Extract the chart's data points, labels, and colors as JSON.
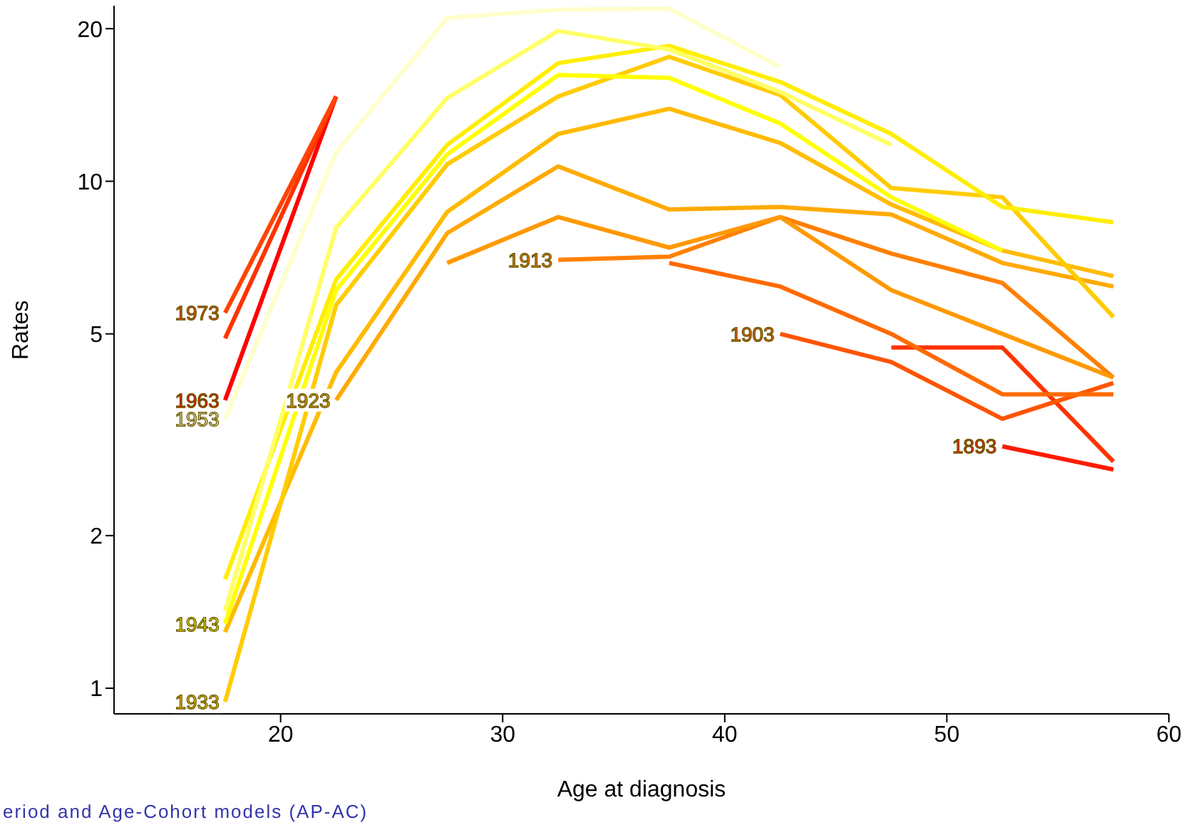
{
  "chart_data": {
    "type": "line",
    "xlabel": "Age at diagnosis",
    "ylabel": "Rates",
    "log": "y",
    "grid": false,
    "marker": "none",
    "line_style": "solid",
    "xlim": [
      12.5,
      60
    ],
    "xticks": [
      20,
      30,
      40,
      50,
      60
    ],
    "ylim": [
      0.89,
      22.2
    ],
    "yticks": [
      1,
      2,
      5,
      10,
      20
    ],
    "annotations": [
      "eriod and Age-Cohort models (AP-AC)"
    ],
    "series": [
      {
        "name": "1893",
        "color": "#ff1a00",
        "x": [
          52.5,
          57.5
        ],
        "values": [
          3.0,
          2.7
        ]
      },
      {
        "color": "#ff3300",
        "x": [
          47.5,
          52.5,
          57.5
        ],
        "values": [
          4.7,
          4.7,
          2.8
        ]
      },
      {
        "name": "1903",
        "color": "#ff5500",
        "x": [
          42.5,
          47.5,
          52.5,
          57.5
        ],
        "values": [
          5.0,
          4.4,
          3.4,
          4.0
        ]
      },
      {
        "color": "#ff6a00",
        "x": [
          37.5,
          42.5,
          47.5,
          52.5,
          57.5
        ],
        "values": [
          6.9,
          6.2,
          5.0,
          3.8,
          3.8
        ]
      },
      {
        "name": "1913",
        "color": "#ff8000",
        "x": [
          32.5,
          37.5,
          42.5,
          47.5,
          52.5,
          57.5
        ],
        "values": [
          7.0,
          7.1,
          8.5,
          7.2,
          6.3,
          4.1
        ]
      },
      {
        "color": "#ff9900",
        "x": [
          27.5,
          32.5,
          37.5,
          42.5,
          47.5,
          52.5,
          57.5
        ],
        "values": [
          6.9,
          8.5,
          7.4,
          8.5,
          6.1,
          5.0,
          4.1
        ]
      },
      {
        "name": "1923",
        "color": "#ffaa00",
        "x": [
          22.5,
          27.5,
          32.5,
          37.5,
          42.5,
          47.5,
          52.5,
          57.5
        ],
        "values": [
          3.7,
          7.9,
          10.7,
          8.8,
          8.9,
          8.6,
          6.9,
          6.2
        ]
      },
      {
        "color": "#ffbb00",
        "x": [
          17.5,
          22.5,
          27.5,
          32.5,
          37.5,
          42.5,
          47.5,
          52.5,
          57.5
        ],
        "values": [
          1.29,
          4.2,
          8.7,
          12.4,
          13.9,
          11.9,
          9.0,
          7.3,
          6.5
        ]
      },
      {
        "name": "1933",
        "color": "#ffcc00",
        "x": [
          17.5,
          22.5,
          27.5,
          32.5,
          37.5,
          42.5,
          47.5,
          52.5,
          57.5
        ],
        "values": [
          0.94,
          5.7,
          10.8,
          14.7,
          17.6,
          14.8,
          9.7,
          9.3,
          5.4
        ]
      },
      {
        "color": "#ffee00",
        "x": [
          17.5,
          22.5,
          27.5,
          32.5,
          37.5,
          42.5,
          47.5,
          52.5,
          57.5
        ],
        "values": [
          1.64,
          6.4,
          11.8,
          17.1,
          18.5,
          15.7,
          12.4,
          8.9,
          8.3
        ]
      },
      {
        "name": "1943",
        "color": "#ffff00",
        "x": [
          17.5,
          22.5,
          27.5,
          32.5,
          37.5,
          42.5,
          47.5,
          52.5
        ],
        "values": [
          1.34,
          6.1,
          11.3,
          16.2,
          16.0,
          13.0,
          9.3,
          7.3
        ]
      },
      {
        "color": "#ffff66",
        "x": [
          17.5,
          22.5,
          27.5,
          32.5,
          37.5,
          42.5,
          47.5
        ],
        "values": [
          1.42,
          8.1,
          14.6,
          19.8,
          18.2,
          15.0,
          11.8
        ]
      },
      {
        "name": "1953",
        "color": "#ffffcc",
        "x": [
          17.5,
          22.5,
          27.5,
          32.5,
          37.5,
          42.5
        ],
        "values": [
          3.4,
          11.4,
          21.0,
          21.8,
          21.9,
          16.8
        ]
      },
      {
        "name": "1963",
        "color": "#ff0000",
        "x": [
          17.5,
          22.5
        ],
        "values": [
          3.7,
          14.7
        ]
      },
      {
        "color": "#ff3300",
        "x": [
          17.5,
          22.5
        ],
        "values": [
          4.9,
          14.7
        ]
      },
      {
        "name": "1973",
        "color": "#ff4400",
        "x": [
          17.5,
          22.5
        ],
        "values": [
          5.5,
          14.7
        ]
      }
    ]
  }
}
